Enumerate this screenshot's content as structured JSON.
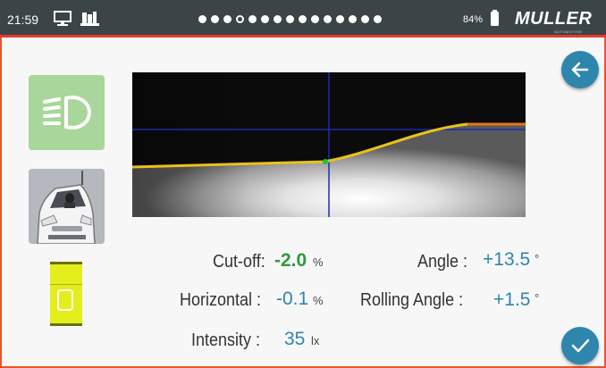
{
  "status_bar": {
    "time": "21:59",
    "icons": [
      "computer-icon",
      "books-icon"
    ],
    "page_dots": 15,
    "active_dot_index": 3,
    "battery_percent": "84%",
    "brand_logo": "MULLER",
    "brand_sub": "AUTOMOTIVE"
  },
  "sidebar": {
    "headlamp_icon": "headlamp-icon",
    "car_icon": "car-front-icon",
    "level_icon": "spirit-level-icon",
    "colors": {
      "headlamp_bg": "#a9d69a",
      "car_bg": "#b5b8be",
      "level": "#e3ee1c"
    }
  },
  "buttons": {
    "back_icon": "arrow-left-icon",
    "confirm_icon": "checkmark-icon",
    "accent": "#2e86ad"
  },
  "measurements": {
    "cutoff": {
      "label": "Cut-off:",
      "value": "-2.0",
      "unit": "%"
    },
    "horizontal": {
      "label": "Horizontal :",
      "value": "-0.1",
      "unit": "%"
    },
    "intensity": {
      "label": "Intensity :",
      "value": "35",
      "unit": "lx"
    },
    "angle": {
      "label": "Angle :",
      "value": "+13.5",
      "unit": "°"
    },
    "rolling_angle": {
      "label": "Rolling Angle :",
      "value": "+1.5",
      "unit": "°"
    }
  }
}
